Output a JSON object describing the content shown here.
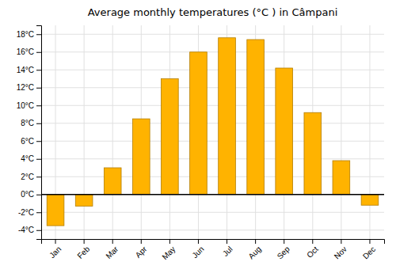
{
  "chart_data": {
    "type": "bar",
    "title": "Average monthly temperatures (°C ) in Câmpani",
    "categories": [
      "Jan",
      "Feb",
      "Mar",
      "Apr",
      "May",
      "Jun",
      "Jul",
      "Aug",
      "Sep",
      "Oct",
      "Nov",
      "Dec"
    ],
    "values": [
      -3.5,
      -1.3,
      3.0,
      8.5,
      13.0,
      16.0,
      17.6,
      17.4,
      14.2,
      9.2,
      3.8,
      -1.2
    ],
    "color": "#FFB300",
    "ylim": [
      -5,
      19
    ],
    "yticks": [
      {
        "value": -4,
        "label": "-4°C"
      },
      {
        "value": -2,
        "label": "-2°C"
      },
      {
        "value": 0,
        "label": "0°C"
      },
      {
        "value": 2,
        "label": "2°C"
      },
      {
        "value": 4,
        "label": "4°C"
      },
      {
        "value": 6,
        "label": "6°C"
      },
      {
        "value": 8,
        "label": "8°C"
      },
      {
        "value": 10,
        "label": "10°C"
      },
      {
        "value": 12,
        "label": "12°C"
      },
      {
        "value": 14,
        "label": "14°C"
      },
      {
        "value": 16,
        "label": "16°C"
      },
      {
        "value": 18,
        "label": "18°C"
      }
    ],
    "grid": true
  }
}
